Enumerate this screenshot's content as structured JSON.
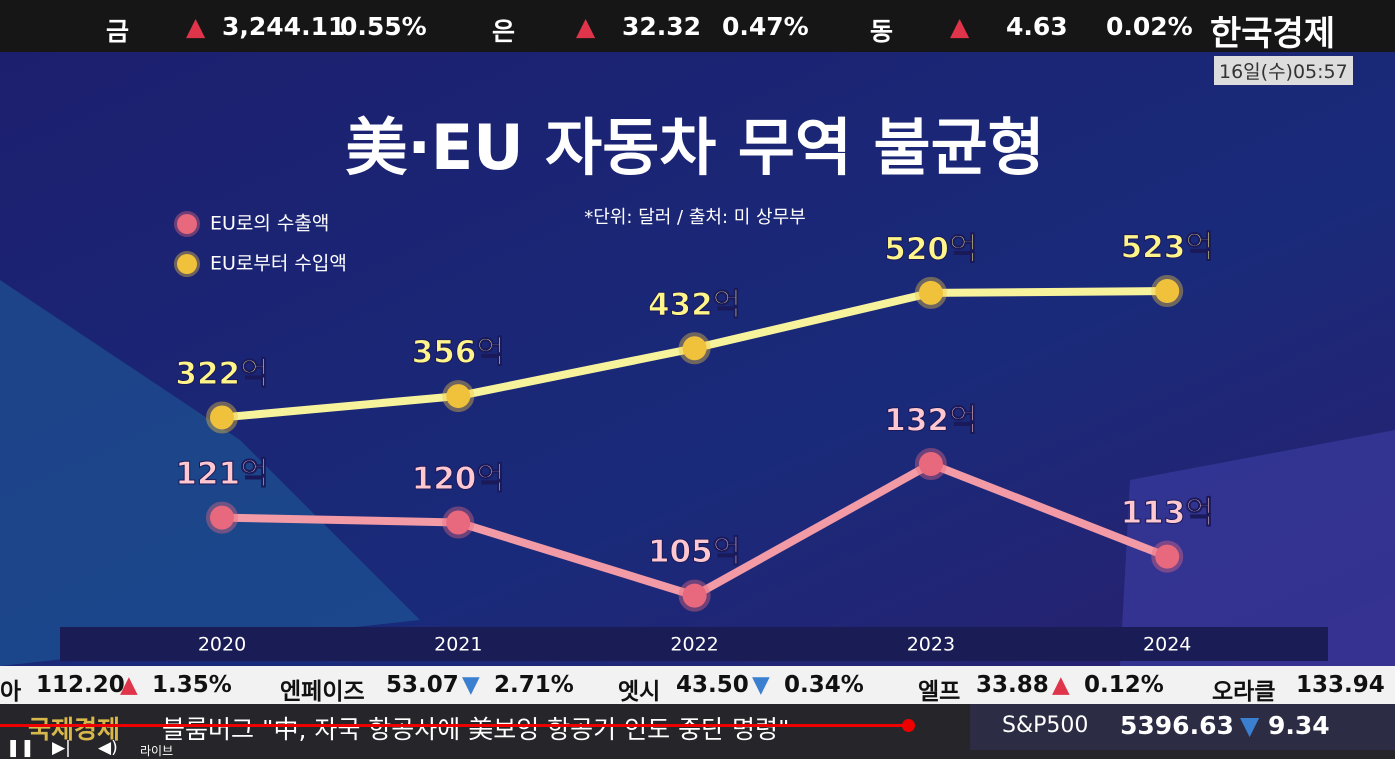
{
  "top_ticker": {
    "items": [
      {
        "name": "금",
        "value": "3,244.11",
        "change": "0.55%"
      },
      {
        "name": "은",
        "value": "32.32",
        "change": "0.47%"
      },
      {
        "name": "동",
        "value": "4.63",
        "change": "0.02%"
      }
    ],
    "brand": "한국경제",
    "time": "16일(수)05:57"
  },
  "chart_data": {
    "type": "line",
    "title": "美·EU 자동차 무역 불균형",
    "subtitle": "*단위: 달러 / 출처: 미 상무부",
    "categories": [
      "2020",
      "2021",
      "2022",
      "2023",
      "2024"
    ],
    "series": [
      {
        "name": "EU로의 수출액",
        "color": "#f29aa6",
        "values": [
          121,
          120,
          105,
          132,
          113
        ],
        "value_labels": [
          "121억",
          "120억",
          "105억",
          "132억",
          "113억"
        ]
      },
      {
        "name": "EU로부터 수입액",
        "color": "#f7f29c",
        "axis": "y2",
        "values": [
          322,
          356,
          432,
          520,
          523
        ],
        "value_labels": [
          "322억",
          "356억",
          "432억",
          "520억",
          "523억"
        ]
      }
    ],
    "ylim": [
      100,
      180
    ],
    "y2lim": [
      0,
      620
    ]
  },
  "bottom_ticker": {
    "items": [
      {
        "name": "아",
        "value": "112.20",
        "change": "1.35%"
      },
      {
        "name": "엔페이즈",
        "value": "53.07",
        "change": "2.71%"
      },
      {
        "name": "엣시",
        "value": "43.50",
        "change": "0.34%"
      },
      {
        "name": "엘프",
        "value": "33.88",
        "change": "0.12%"
      },
      {
        "name": "오라클",
        "value": "133.94"
      }
    ]
  },
  "news_bar": {
    "section": "국제경제",
    "headline": "블룸버그 \"中, 자국 항공사에 美보잉 항공기 인도 중단 명령\"",
    "index_name": "S&P500",
    "index_value": "5396.63",
    "index_change": "9.34"
  },
  "player": {
    "live": "라이브"
  }
}
